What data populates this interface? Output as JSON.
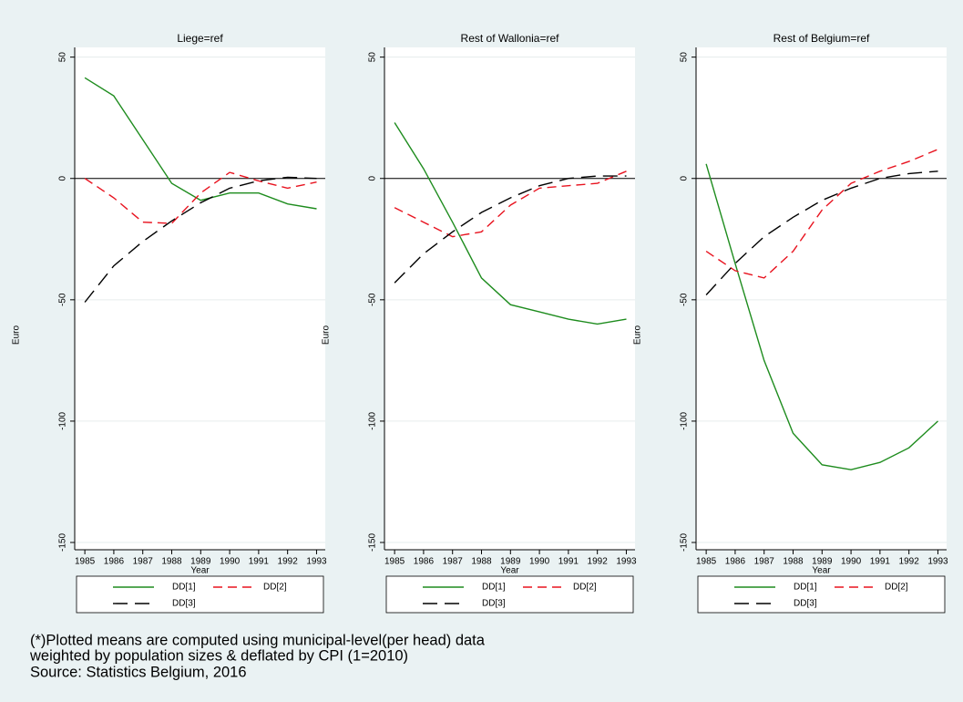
{
  "chart_data": [
    {
      "type": "line",
      "title": "Liege=ref",
      "x_label": "Year",
      "y_label": "Euro",
      "x": [
        1985,
        1986,
        1987,
        1988,
        1989,
        1990,
        1991,
        1992,
        1993
      ],
      "xlim": [
        1984.65,
        1993.3
      ],
      "xticks": [
        1985,
        1986,
        1987,
        1988,
        1989,
        1990,
        1991,
        1992,
        1993
      ],
      "ylim": [
        -153,
        54
      ],
      "yticks": [
        50,
        0,
        -50,
        -100,
        -150
      ],
      "grid": true,
      "reference_line": 0,
      "series": [
        {
          "name": "DD[1]",
          "color": "#1e8c1e",
          "dash": "solid",
          "values": [
            41.5,
            34,
            16,
            -2,
            -9,
            -6,
            -6,
            -10.5,
            -12.5
          ]
        },
        {
          "name": "DD[2]",
          "color": "#e8131f",
          "dash": "dashed",
          "values": [
            0,
            -8,
            -18,
            -18.5,
            -6,
            2.5,
            -1,
            -4,
            -1.5
          ]
        },
        {
          "name": "DD[3]",
          "color": "#000000",
          "dash": "longdash",
          "values": [
            -51,
            -36,
            -26,
            -17.5,
            -10,
            -4,
            -1,
            0.5,
            0
          ]
        }
      ]
    },
    {
      "type": "line",
      "title": "Rest of Wallonia=ref",
      "x_label": "Year",
      "y_label": "Euro",
      "x": [
        1985,
        1986,
        1987,
        1988,
        1989,
        1990,
        1991,
        1992,
        1993
      ],
      "xlim": [
        1984.65,
        1993.3
      ],
      "xticks": [
        1985,
        1986,
        1987,
        1988,
        1989,
        1990,
        1991,
        1992,
        1993
      ],
      "ylim": [
        -153,
        54
      ],
      "yticks": [
        50,
        0,
        -50,
        -100,
        -150
      ],
      "grid": true,
      "reference_line": 0,
      "series": [
        {
          "name": "DD[1]",
          "color": "#1e8c1e",
          "dash": "solid",
          "values": [
            23,
            4,
            -18,
            -41,
            -52,
            -55,
            -58,
            -60,
            -58
          ]
        },
        {
          "name": "DD[2]",
          "color": "#e8131f",
          "dash": "dashed",
          "values": [
            -12,
            -18,
            -24,
            -22,
            -11,
            -4,
            -3,
            -2,
            3
          ]
        },
        {
          "name": "DD[3]",
          "color": "#000000",
          "dash": "longdash",
          "values": [
            -43,
            -31,
            -22,
            -14,
            -8,
            -3,
            0,
            1,
            1
          ]
        }
      ]
    },
    {
      "type": "line",
      "title": "Rest of Belgium=ref",
      "x_label": "Year",
      "y_label": "Euro",
      "x": [
        1985,
        1986,
        1987,
        1988,
        1989,
        1990,
        1991,
        1992,
        1993
      ],
      "xlim": [
        1984.65,
        1993.3
      ],
      "xticks": [
        1985,
        1986,
        1987,
        1988,
        1989,
        1990,
        1991,
        1992,
        1993
      ],
      "ylim": [
        -153,
        54
      ],
      "yticks": [
        50,
        0,
        -50,
        -100,
        -150
      ],
      "grid": true,
      "reference_line": 0,
      "series": [
        {
          "name": "DD[1]",
          "color": "#1e8c1e",
          "dash": "solid",
          "values": [
            6,
            -35,
            -75,
            -105,
            -118,
            -120,
            -117,
            -111,
            -100
          ]
        },
        {
          "name": "DD[2]",
          "color": "#e8131f",
          "dash": "dashed",
          "values": [
            -30,
            -38,
            -41,
            -30,
            -13,
            -2,
            3,
            7,
            12
          ]
        },
        {
          "name": "DD[3]",
          "color": "#000000",
          "dash": "longdash",
          "values": [
            -48,
            -35,
            -24,
            -16,
            -9,
            -4,
            0,
            2,
            3
          ]
        }
      ]
    }
  ],
  "footnote": [
    "(*)Plotted means are computed using municipal-level(per head) data",
    "weighted by population sizes & deflated by CPI (1=2010)",
    "Source: Statistics Belgium, 2016"
  ]
}
